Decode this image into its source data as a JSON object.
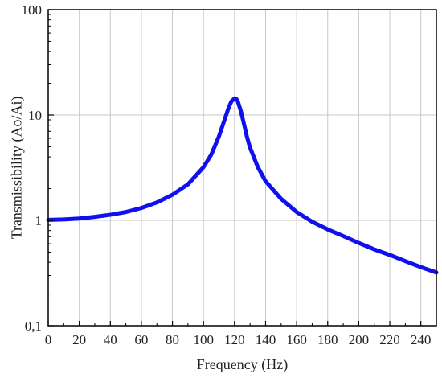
{
  "chart_data": {
    "type": "line",
    "xlabel": "Frequency (Hz)",
    "ylabel": "Transmissibility (Ao/Ai)",
    "xlim": [
      0,
      250
    ],
    "ylim": [
      0.1,
      100
    ],
    "y_scale": "log",
    "grid": true,
    "x_ticks": [
      0,
      20,
      40,
      60,
      80,
      100,
      120,
      140,
      160,
      180,
      200,
      220,
      240
    ],
    "x_tick_labels": [
      "0",
      "20",
      "40",
      "60",
      "80",
      "100",
      "120",
      "140",
      "160",
      "180",
      "200",
      "220",
      "240"
    ],
    "y_ticks": [
      0.1,
      1,
      10,
      100
    ],
    "y_tick_labels": [
      "0,1",
      "1",
      "10",
      "100"
    ],
    "series": [
      {
        "color": "#1010ee",
        "x": [
          0,
          10,
          20,
          30,
          40,
          50,
          60,
          70,
          80,
          90,
          100,
          105,
          110,
          113,
          116,
          118,
          120,
          121,
          122,
          124,
          126,
          128,
          130,
          135,
          140,
          150,
          160,
          170,
          180,
          190,
          200,
          210,
          220,
          230,
          240,
          250
        ],
        "y": [
          1.01,
          1.02,
          1.04,
          1.08,
          1.13,
          1.2,
          1.31,
          1.48,
          1.75,
          2.2,
          3.2,
          4.2,
          6.3,
          8.5,
          11.5,
          13.5,
          14.4,
          14.3,
          13.6,
          11.0,
          8.3,
          6.2,
          4.9,
          3.2,
          2.35,
          1.6,
          1.2,
          0.97,
          0.82,
          0.71,
          0.61,
          0.53,
          0.47,
          0.41,
          0.36,
          0.32
        ]
      }
    ]
  }
}
